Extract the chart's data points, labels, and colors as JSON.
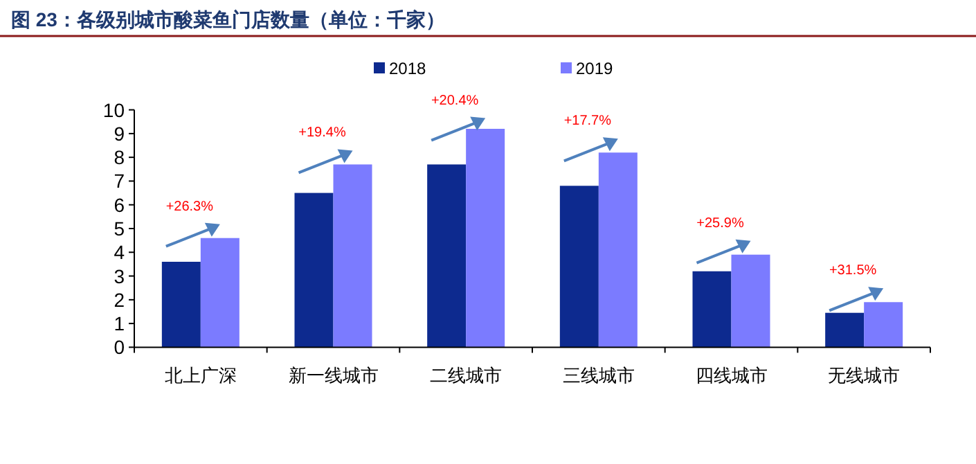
{
  "chart_data": {
    "type": "bar",
    "title": "图 23：各级别城市酸菜鱼门店数量（单位：千家）",
    "categories": [
      "北上广深",
      "新一线城市",
      "二线城市",
      "三线城市",
      "四线城市",
      "无线城市"
    ],
    "series": [
      {
        "name": "2018",
        "color": "#0d2a8f",
        "values": [
          3.6,
          6.5,
          7.7,
          6.8,
          3.2,
          1.45
        ]
      },
      {
        "name": "2019",
        "color": "#7b7bff",
        "values": [
          4.6,
          7.7,
          9.2,
          8.2,
          3.9,
          1.9
        ]
      }
    ],
    "ylim": [
      0,
      10
    ],
    "yticks": [
      0,
      1,
      2,
      3,
      4,
      5,
      6,
      7,
      8,
      9,
      10
    ],
    "grid": false,
    "legend": "top",
    "annotations": [
      "+26.3%",
      "+19.4%",
      "+20.4%",
      "+17.7%",
      "+25.9%",
      "+31.5%"
    ]
  }
}
